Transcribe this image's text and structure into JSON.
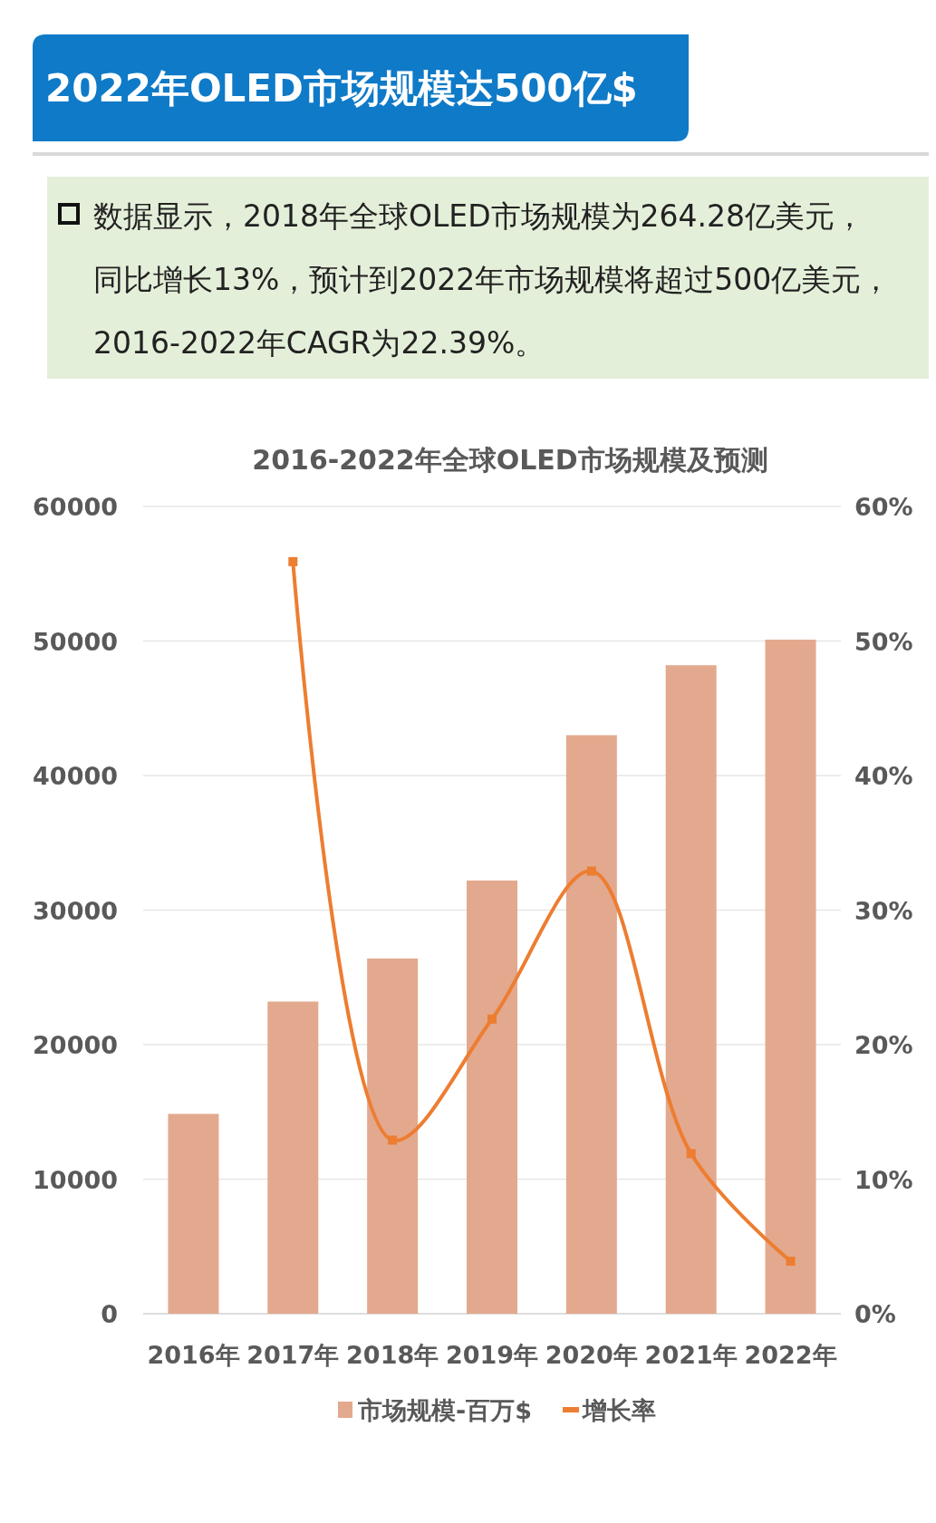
{
  "chart_data": {
    "type": "bar",
    "title": "2022年OLED市场规模达500亿$",
    "subtitle": "2016-2022年全球OLED市场规模及预测",
    "annotations": [
      "数据显示，2018年全球OLED市场规模为264.28亿美元，同比增长13%，预计到2022年市场规模将超过500亿美元，2016-2022年CAGR为22.39%。"
    ],
    "categories": [
      "2016年",
      "2017年",
      "2018年",
      "2019年",
      "2020年",
      "2021年",
      "2022年"
    ],
    "series": [
      {
        "name": "市场规模-百万$",
        "color": "#e3a98e",
        "values": [
          14850,
          23200,
          26400,
          32200,
          43000,
          48200,
          50100
        ]
      },
      {
        "name": "增长率",
        "type": "line",
        "axis": "y2",
        "color": "#ed7d31",
        "values": [
          null,
          55.9,
          12.9,
          21.9,
          32.9,
          11.9,
          3.9
        ]
      }
    ],
    "ylim": [
      0,
      60000
    ],
    "yticks": [
      0,
      10000,
      20000,
      30000,
      40000,
      50000,
      60000
    ],
    "y2lim": [
      0,
      60
    ],
    "y2ticks": [
      {
        "value": 0,
        "label": "0%"
      },
      {
        "value": 10,
        "label": "10%"
      },
      {
        "value": 20,
        "label": "20%"
      },
      {
        "value": 30,
        "label": "30%"
      },
      {
        "value": 40,
        "label": "40%"
      },
      {
        "value": 50,
        "label": "50%"
      },
      {
        "value": 60,
        "label": "60%"
      }
    ],
    "grid": "y",
    "legend": "bottom",
    "marker": "square",
    "line_style": "solid"
  }
}
